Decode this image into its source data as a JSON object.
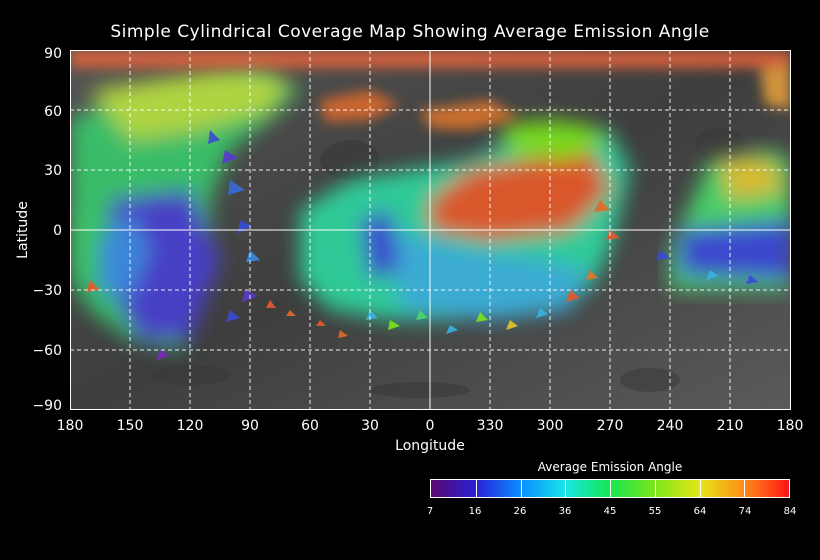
{
  "title": "Simple Cylindrical Coverage Map Showing Average Emission Angle",
  "axes": {
    "xlabel": "Longitude",
    "ylabel": "Latitude",
    "x_ticks": [
      "180",
      "150",
      "120",
      "90",
      "60",
      "30",
      "0",
      "330",
      "300",
      "270",
      "240",
      "210",
      "180"
    ],
    "y_ticks": [
      "90",
      "60",
      "30",
      "0",
      "−30",
      "−60",
      "−90"
    ]
  },
  "colorbar": {
    "title": "Average Emission Angle",
    "ticks": [
      "7",
      "16",
      "26",
      "36",
      "45",
      "55",
      "64",
      "74",
      "84"
    ],
    "colors": [
      "#5a0a6e",
      "#2a1fd6",
      "#0a8cff",
      "#17e6e6",
      "#17e650",
      "#7ae61a",
      "#e6e617",
      "#ff8c1a",
      "#ff1414"
    ]
  }
}
